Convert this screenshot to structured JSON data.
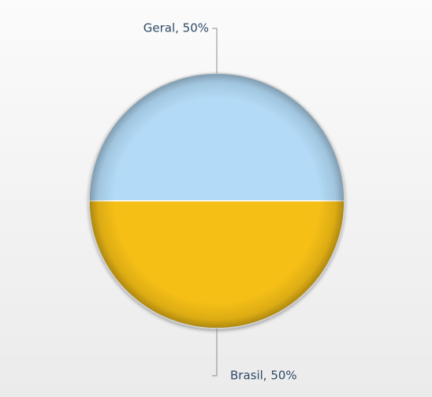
{
  "chart_data": {
    "type": "pie",
    "title": "",
    "slices": [
      {
        "label": "Geral",
        "value": 50,
        "display": "Geral, 50%",
        "color": "#b3dbf7"
      },
      {
        "label": "Brasil",
        "value": 50,
        "display": "Brasil, 50%",
        "color": "#f5bf17"
      }
    ],
    "legend": "none",
    "data_labels": "outside-with-leader-lines"
  }
}
